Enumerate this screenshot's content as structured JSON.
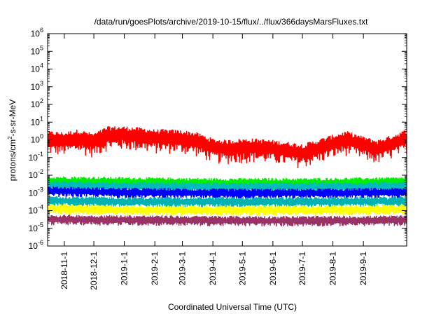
{
  "chart_data": {
    "type": "line",
    "title": "/data/run/goesPlots/archive/2019-10-15/flux/../flux/366daysMarsFluxes.txt",
    "xlabel": "Coordinated Universal Time (UTC)",
    "ylabel": "protons/cm2-s-sr-MeV",
    "ylabel_base": "protons/cm",
    "ylabel_sup": "2",
    "ylabel_rest": "-s-sr-MeV",
    "yscale": "log",
    "ylim": [
      1e-06,
      1000000.0
    ],
    "xlim": [
      "2018-10-15",
      "2019-10-15"
    ],
    "yticks": [
      {
        "base": "10",
        "exp": "-6",
        "value": 1e-06
      },
      {
        "base": "10",
        "exp": "-5",
        "value": 1e-05
      },
      {
        "base": "10",
        "exp": "-4",
        "value": 0.0001
      },
      {
        "base": "10",
        "exp": "-3",
        "value": 0.001
      },
      {
        "base": "10",
        "exp": "-2",
        "value": 0.01
      },
      {
        "base": "10",
        "exp": "-1",
        "value": 0.1
      },
      {
        "base": "10",
        "exp": "0",
        "value": 1
      },
      {
        "base": "10",
        "exp": "1",
        "value": 10
      },
      {
        "base": "10",
        "exp": "2",
        "value": 100
      },
      {
        "base": "10",
        "exp": "3",
        "value": 1000
      },
      {
        "base": "10",
        "exp": "4",
        "value": 10000
      },
      {
        "base": "10",
        "exp": "5",
        "value": 100000
      },
      {
        "base": "10",
        "exp": "6",
        "value": 1000000
      }
    ],
    "xticks": [
      {
        "label": "2018-11-1",
        "date": "2018-11-01"
      },
      {
        "label": "2018-12-1",
        "date": "2018-12-01"
      },
      {
        "label": "2019-1-1",
        "date": "2019-01-01"
      },
      {
        "label": "2019-2-1",
        "date": "2019-02-01"
      },
      {
        "label": "2019-3-1",
        "date": "2019-03-01"
      },
      {
        "label": "2019-4-1",
        "date": "2019-04-01"
      },
      {
        "label": "2019-5-1",
        "date": "2019-05-01"
      },
      {
        "label": "2019-6-1",
        "date": "2019-06-01"
      },
      {
        "label": "2019-7-1",
        "date": "2019-07-01"
      },
      {
        "label": "2019-8-1",
        "date": "2019-08-01"
      },
      {
        "label": "2019-9-1",
        "date": "2019-09-01"
      }
    ],
    "grid": false,
    "legend": false,
    "series": [
      {
        "color": "#ff0000",
        "band": [
          0.15,
          4
        ],
        "x": [
          "2018-10-15",
          "2018-11-01",
          "2018-11-15",
          "2018-12-01",
          "2018-12-15",
          "2019-01-01",
          "2019-01-15",
          "2019-02-01",
          "2019-02-15",
          "2019-03-01",
          "2019-03-15",
          "2019-04-01",
          "2019-04-15",
          "2019-05-01",
          "2019-05-15",
          "2019-06-01",
          "2019-06-15",
          "2019-07-01",
          "2019-07-15",
          "2019-08-01",
          "2019-08-15",
          "2019-09-01",
          "2019-09-15",
          "2019-10-01",
          "2019-10-15"
        ],
        "y": [
          0.8,
          0.7,
          1.0,
          0.6,
          1.5,
          1.5,
          1.3,
          1.0,
          1.0,
          0.9,
          0.7,
          0.3,
          0.25,
          0.3,
          0.3,
          0.25,
          0.2,
          0.15,
          0.25,
          0.5,
          0.8,
          0.4,
          0.25,
          0.5,
          1.0
        ]
      },
      {
        "color": "#00ee00",
        "band": [
          0.5,
          2
        ],
        "x": [
          "2018-10-15",
          "2019-01-01",
          "2019-04-01",
          "2019-07-01",
          "2019-10-15"
        ],
        "y": [
          0.0045,
          0.004,
          0.0035,
          0.0035,
          0.004
        ]
      },
      {
        "color": "#00bbbb",
        "band": [
          0.5,
          2
        ],
        "x": [
          "2018-10-15",
          "2019-01-01",
          "2019-04-01",
          "2019-07-01",
          "2019-10-15"
        ],
        "y": [
          0.0025,
          0.0022,
          0.002,
          0.002,
          0.0022
        ]
      },
      {
        "color": "#0000ff",
        "band": [
          0.5,
          2
        ],
        "x": [
          "2018-10-15",
          "2019-01-01",
          "2019-04-01",
          "2019-07-01",
          "2019-10-15"
        ],
        "y": [
          0.0012,
          0.001,
          0.0009,
          0.0009,
          0.001
        ]
      },
      {
        "color": "#00b3b3",
        "band": [
          0.5,
          2
        ],
        "x": [
          "2018-10-15",
          "2019-01-01",
          "2019-04-01",
          "2019-07-01",
          "2019-10-15"
        ],
        "y": [
          0.00035,
          0.0003,
          0.0003,
          0.0003,
          0.00032
        ]
      },
      {
        "color": "#ffff00",
        "band": [
          0.5,
          2
        ],
        "x": [
          "2018-10-15",
          "2019-01-01",
          "2019-04-01",
          "2019-07-01",
          "2019-10-15"
        ],
        "y": [
          0.00012,
          0.0001,
          0.0001,
          0.0001,
          0.00011
        ]
      },
      {
        "color": "#993366",
        "band": [
          0.5,
          2
        ],
        "x": [
          "2018-10-15",
          "2019-01-01",
          "2019-04-01",
          "2019-07-01",
          "2019-10-15"
        ],
        "y": [
          3e-05,
          2.8e-05,
          2.6e-05,
          2.5e-05,
          2.7e-05
        ]
      }
    ]
  }
}
